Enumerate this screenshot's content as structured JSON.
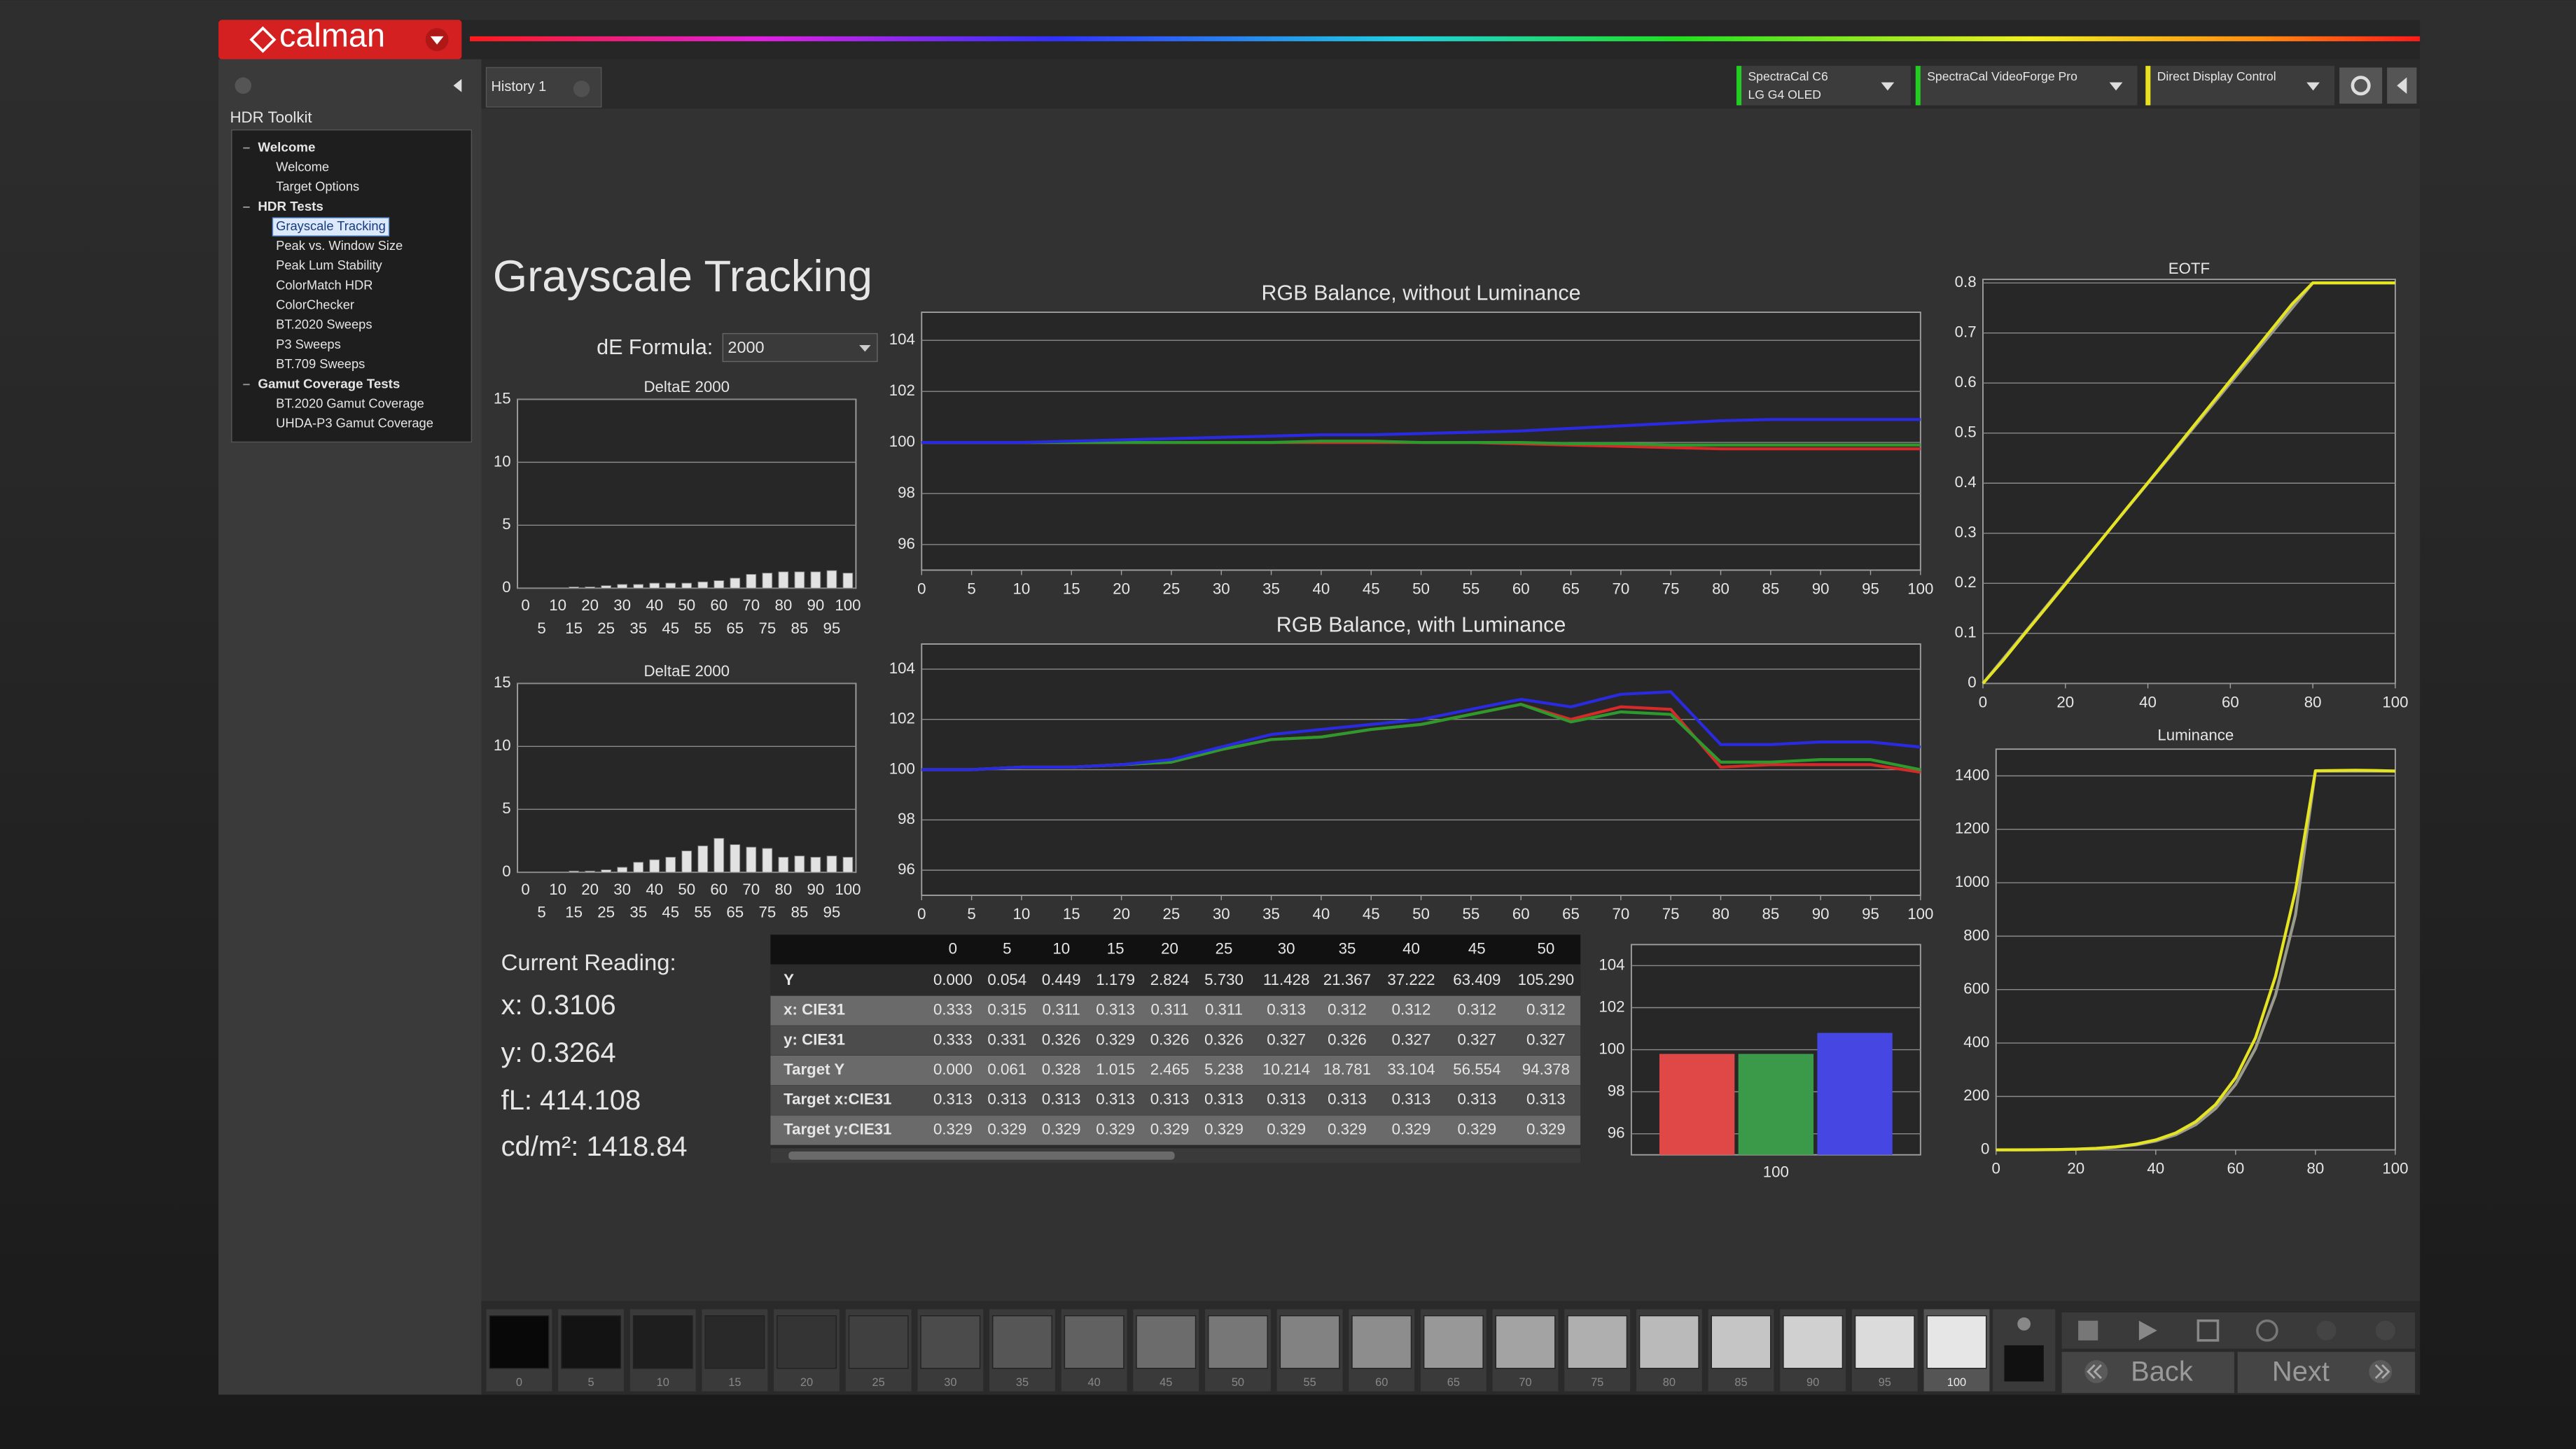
{
  "app": {
    "logo": "calman",
    "tab": "History 1",
    "devices": [
      {
        "name": "SpectraCal C6",
        "detail": "LG G4 OLED"
      },
      {
        "name": "SpectraCal VideoForge Pro"
      },
      {
        "name": "Direct Display Control"
      }
    ]
  },
  "sidebar": {
    "title": "HDR Toolkit",
    "groups": [
      {
        "label": "Welcome",
        "items": [
          "Welcome",
          "Target Options"
        ]
      },
      {
        "label": "HDR Tests",
        "items": [
          "Grayscale Tracking",
          "Peak vs. Window Size",
          "Peak Lum Stability",
          "ColorMatch HDR",
          "ColorChecker",
          "BT.2020 Sweeps",
          "P3 Sweeps",
          "BT.709 Sweeps"
        ]
      },
      {
        "label": "Gamut Coverage Tests",
        "items": [
          "BT.2020 Gamut Coverage",
          "UHDA-P3 Gamut Coverage"
        ]
      }
    ]
  },
  "page": {
    "title": "Grayscale Tracking",
    "de_formula_label": "dE Formula:",
    "de_formula": "2000"
  },
  "charts": [
    {
      "type": "bar",
      "title": "DeltaE 2000",
      "categories": [
        "0",
        "5",
        "10",
        "15",
        "20",
        "25",
        "30",
        "35",
        "40",
        "45",
        "50",
        "55",
        "60",
        "65",
        "70",
        "75",
        "80",
        "85",
        "90",
        "95",
        "100"
      ],
      "values": [
        0,
        0,
        0,
        0.1,
        0.1,
        0.2,
        0.3,
        0.3,
        0.4,
        0.4,
        0.4,
        0.5,
        0.6,
        0.8,
        1.1,
        1.2,
        1.3,
        1.3,
        1.3,
        1.4,
        1.2
      ],
      "color": "#e2e2e2",
      "ylim": [
        0,
        15
      ],
      "yticks": [
        0,
        5,
        10,
        15
      ],
      "grid": true
    },
    {
      "type": "bar",
      "title": "DeltaE 2000",
      "categories": [
        "0",
        "5",
        "10",
        "15",
        "20",
        "25",
        "30",
        "35",
        "40",
        "45",
        "50",
        "55",
        "60",
        "65",
        "70",
        "75",
        "80",
        "85",
        "90",
        "95",
        "100"
      ],
      "values": [
        0,
        0,
        0,
        0.1,
        0.1,
        0.2,
        0.4,
        0.8,
        1.0,
        1.2,
        1.7,
        2.1,
        2.7,
        2.2,
        2.0,
        1.9,
        1.2,
        1.3,
        1.2,
        1.3,
        1.2
      ],
      "color": "#e2e2e2",
      "ylim": [
        0,
        15
      ],
      "yticks": [
        0,
        5,
        10,
        15
      ],
      "grid": true
    },
    {
      "type": "line",
      "title": "RGB Balance, without Luminance",
      "x": [
        0,
        5,
        10,
        15,
        20,
        25,
        30,
        35,
        40,
        45,
        50,
        55,
        60,
        65,
        70,
        75,
        80,
        85,
        90,
        95,
        100
      ],
      "series": [
        {
          "color": "#d42a2a",
          "values": [
            100,
            100,
            100,
            100,
            100,
            100,
            100,
            100,
            100,
            100,
            100,
            100,
            99.95,
            99.9,
            99.85,
            99.8,
            99.75,
            99.75,
            99.75,
            99.75,
            99.75
          ]
        },
        {
          "color": "#2e9a2e",
          "values": [
            100,
            100,
            100,
            100,
            100,
            100,
            100,
            100,
            100.05,
            100.05,
            100,
            100,
            100,
            99.95,
            99.95,
            99.9,
            99.9,
            99.9,
            99.9,
            99.9,
            99.9
          ]
        },
        {
          "color": "#2a2ae0",
          "values": [
            100,
            100,
            100,
            100.05,
            100.1,
            100.15,
            100.2,
            100.25,
            100.3,
            100.3,
            100.35,
            100.4,
            100.45,
            100.55,
            100.65,
            100.75,
            100.85,
            100.9,
            100.9,
            100.9,
            100.9
          ]
        }
      ],
      "xlim": [
        0,
        100
      ],
      "xticks": [
        0,
        5,
        10,
        15,
        20,
        25,
        30,
        35,
        40,
        45,
        50,
        55,
        60,
        65,
        70,
        75,
        80,
        85,
        90,
        95,
        100
      ],
      "ylim": [
        95,
        105.1
      ],
      "yticks": [
        96,
        98,
        100,
        102,
        104
      ],
      "grid": true
    },
    {
      "type": "line",
      "title": "RGB Balance, with Luminance",
      "x": [
        0,
        5,
        10,
        15,
        20,
        25,
        30,
        35,
        40,
        45,
        50,
        55,
        60,
        65,
        70,
        75,
        80,
        85,
        90,
        95,
        100
      ],
      "series": [
        {
          "color": "#d42a2a",
          "values": [
            100,
            100,
            100.1,
            100.1,
            100.2,
            100.3,
            100.8,
            101.2,
            101.3,
            101.6,
            101.8,
            102.2,
            102.6,
            102.0,
            102.5,
            102.4,
            100.1,
            100.2,
            100.2,
            100.2,
            99.9
          ]
        },
        {
          "color": "#2e9a2e",
          "values": [
            100,
            100,
            100.1,
            100.1,
            100.2,
            100.3,
            100.8,
            101.2,
            101.3,
            101.6,
            101.8,
            102.2,
            102.6,
            101.9,
            102.3,
            102.2,
            100.3,
            100.3,
            100.4,
            100.4,
            100.0
          ]
        },
        {
          "color": "#2a2ae0",
          "values": [
            100,
            100,
            100.1,
            100.1,
            100.2,
            100.4,
            100.9,
            101.4,
            101.6,
            101.8,
            102.0,
            102.4,
            102.8,
            102.5,
            103.0,
            103.1,
            101.0,
            101.0,
            101.1,
            101.1,
            100.9
          ]
        }
      ],
      "xlim": [
        0,
        100
      ],
      "xticks": [
        0,
        5,
        10,
        15,
        20,
        25,
        30,
        35,
        40,
        45,
        50,
        55,
        60,
        65,
        70,
        75,
        80,
        85,
        90,
        95,
        100
      ],
      "ylim": [
        95,
        105
      ],
      "yticks": [
        96,
        98,
        100,
        102,
        104
      ],
      "grid": true
    },
    {
      "type": "line",
      "title": "EOTF",
      "x": [
        0,
        5,
        10,
        15,
        20,
        25,
        30,
        35,
        40,
        45,
        50,
        55,
        60,
        65,
        70,
        75,
        80,
        85,
        90,
        95,
        100
      ],
      "series": [
        {
          "color": "#9a9a8c",
          "values": [
            0,
            0.05,
            0.1,
            0.15,
            0.2,
            0.25,
            0.3,
            0.35,
            0.4,
            0.45,
            0.5,
            0.55,
            0.6,
            0.65,
            0.7,
            0.75,
            0.8,
            0.8,
            0.8,
            0.8,
            0.8
          ]
        },
        {
          "color": "#e4e424",
          "values": [
            0,
            0.047,
            0.098,
            0.148,
            0.198,
            0.249,
            0.3,
            0.351,
            0.401,
            0.452,
            0.503,
            0.554,
            0.605,
            0.656,
            0.707,
            0.758,
            0.8,
            0.8,
            0.8,
            0.8,
            0.8
          ]
        }
      ],
      "xlim": [
        0,
        100
      ],
      "xticks": [
        0,
        20,
        40,
        60,
        80,
        100
      ],
      "ylim": [
        0,
        0.807
      ],
      "yticks": [
        0,
        0.1,
        0.2,
        0.3,
        0.4,
        0.5,
        0.6,
        0.7,
        0.8
      ],
      "grid": true
    },
    {
      "type": "line",
      "title": "Luminance",
      "x": [
        0,
        5,
        10,
        15,
        20,
        25,
        30,
        35,
        40,
        45,
        50,
        55,
        60,
        65,
        70,
        75,
        80,
        85,
        90,
        95,
        100
      ],
      "series": [
        {
          "color": "#9a9a8c",
          "values": [
            0,
            0.061,
            0.328,
            1.015,
            2.465,
            5.238,
            10.214,
            18.781,
            33.104,
            56.554,
            94.378,
            155,
            245,
            380,
            580,
            880,
            1418,
            1418,
            1418,
            1418,
            1418
          ]
        },
        {
          "color": "#e4e424",
          "values": [
            0,
            0.054,
            0.449,
            1.179,
            2.824,
            5.73,
            11.428,
            21.367,
            37.222,
            63.409,
            105.29,
            170,
            270,
            420,
            650,
            970,
            1419,
            1420,
            1421,
            1420,
            1418
          ]
        }
      ],
      "xlim": [
        0,
        100
      ],
      "xticks": [
        0,
        20,
        40,
        60,
        80,
        100
      ],
      "ylim": [
        0,
        1500
      ],
      "yticks": [
        0,
        200,
        400,
        600,
        800,
        1000,
        1200,
        1400
      ],
      "grid": true
    },
    {
      "type": "bar",
      "categories": [
        "100"
      ],
      "series": [
        {
          "color": "#e04848",
          "values": [
            99.8
          ]
        },
        {
          "color": "#3a9a4a",
          "values": [
            99.8
          ]
        },
        {
          "color": "#4646e2",
          "values": [
            100.8
          ]
        }
      ],
      "ylim": [
        95,
        105
      ],
      "yticks": [
        96,
        98,
        100,
        102,
        104
      ],
      "grid": true
    }
  ],
  "reading": {
    "title": "Current Reading:",
    "lines": [
      "x: 0.3106",
      "y: 0.3264",
      "fL: 414.108",
      "cd/m²: 1418.84"
    ]
  },
  "table": {
    "columns": [
      "0",
      "5",
      "10",
      "15",
      "20",
      "25",
      "30",
      "35",
      "40",
      "45",
      "50"
    ],
    "rows": [
      {
        "label": "Y",
        "values": [
          "0.000",
          "0.054",
          "0.449",
          "1.179",
          "2.824",
          "5.730",
          "11.428",
          "21.367",
          "37.222",
          "63.409",
          "105.290"
        ]
      },
      {
        "label": "x: CIE31",
        "values": [
          "0.333",
          "0.315",
          "0.311",
          "0.313",
          "0.311",
          "0.311",
          "0.313",
          "0.312",
          "0.312",
          "0.312",
          "0.312"
        ]
      },
      {
        "label": "y: CIE31",
        "values": [
          "0.333",
          "0.331",
          "0.326",
          "0.329",
          "0.326",
          "0.326",
          "0.327",
          "0.326",
          "0.327",
          "0.327",
          "0.327"
        ]
      },
      {
        "label": "Target Y",
        "values": [
          "0.000",
          "0.061",
          "0.328",
          "1.015",
          "2.465",
          "5.238",
          "10.214",
          "18.781",
          "33.104",
          "56.554",
          "94.378"
        ]
      },
      {
        "label": "Target x:CIE31",
        "values": [
          "0.313",
          "0.313",
          "0.313",
          "0.313",
          "0.313",
          "0.313",
          "0.313",
          "0.313",
          "0.313",
          "0.313",
          "0.313"
        ]
      },
      {
        "label": "Target y:CIE31",
        "values": [
          "0.329",
          "0.329",
          "0.329",
          "0.329",
          "0.329",
          "0.329",
          "0.329",
          "0.329",
          "0.329",
          "0.329",
          "0.329"
        ]
      }
    ]
  },
  "patches": {
    "labels": [
      "0",
      "5",
      "10",
      "15",
      "20",
      "25",
      "30",
      "35",
      "40",
      "45",
      "50",
      "55",
      "60",
      "65",
      "70",
      "75",
      "80",
      "85",
      "90",
      "95",
      "100"
    ]
  },
  "nav": {
    "back": "Back",
    "next": "Next"
  }
}
